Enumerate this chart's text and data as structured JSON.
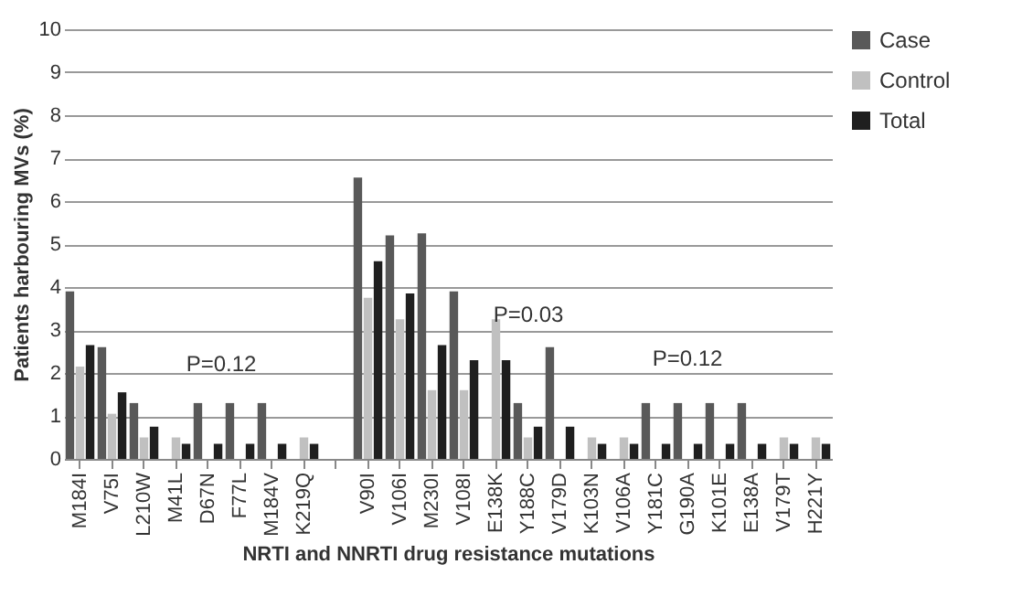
{
  "chart_data": {
    "type": "bar",
    "xlabel": "NRTI and NNRTI drug resistance mutations",
    "ylabel": "Patients harbouring MVs (%)",
    "categories": [
      "M184I",
      "V75I",
      "L210W",
      "M41L",
      "D67N",
      "F77L",
      "M184V",
      "K219Q",
      null,
      "V90I",
      "V106I",
      "M230I",
      "V108I",
      "E138K",
      "Y188C",
      "V179D",
      "K103N",
      "V106A",
      "Y181C",
      "G190A",
      "K101E",
      "E138A",
      "V179T",
      "H221Y"
    ],
    "series": [
      {
        "name": "Case",
        "color": "#595959",
        "values": [
          3.9,
          2.6,
          1.3,
          0,
          1.3,
          1.3,
          1.3,
          0,
          null,
          6.55,
          5.2,
          5.25,
          3.9,
          0,
          1.3,
          2.6,
          0,
          0,
          1.3,
          1.3,
          1.3,
          1.3,
          0,
          0
        ]
      },
      {
        "name": "Control",
        "color": "#c0c0c0",
        "values": [
          2.15,
          1.05,
          0.5,
          0.5,
          0,
          0,
          0,
          0.5,
          null,
          3.75,
          3.25,
          1.6,
          1.6,
          3.25,
          0.5,
          0,
          0.5,
          0.5,
          0,
          0,
          0,
          0,
          0.5,
          0.5
        ]
      },
      {
        "name": "Total",
        "color": "#1f1f1f",
        "values": [
          2.65,
          1.55,
          0.75,
          0.35,
          0.35,
          0.35,
          0.35,
          0.35,
          null,
          4.6,
          3.85,
          2.65,
          2.3,
          2.3,
          0.75,
          0.75,
          0.35,
          0.35,
          0.35,
          0.35,
          0.35,
          0.35,
          0.35,
          0.35
        ]
      }
    ],
    "ylim": [
      0,
      10
    ],
    "yticks": [
      0,
      1,
      2,
      3,
      4,
      5,
      6,
      7,
      8,
      9,
      10
    ],
    "grid": "y",
    "legend": "right",
    "annotations": [
      "P=0.12",
      "P=0.03",
      "P=0.12"
    ]
  }
}
